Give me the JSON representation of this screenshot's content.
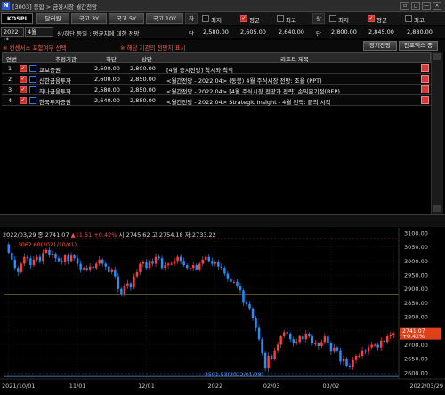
{
  "window": {
    "logo": "N",
    "title": "[3003] 종합 > 금융시장 월간전망",
    "buttons": [
      "▫",
      "◻",
      "—",
      "×"
    ]
  },
  "toolbar": {
    "index": "KOSPI",
    "nav": [
      "달러원",
      "국고 3Y",
      "국고 5Y",
      "국고 10Y"
    ],
    "low_label": "하",
    "high_label": "상",
    "col_titles": [
      "단"
    ],
    "chk_labels": [
      "최저",
      "평균",
      "최고"
    ]
  },
  "row2": {
    "year": "2022년",
    "month": "4월",
    "caption": "상/하단 등일 : 평균치에 대한 전망",
    "low_values": [
      "2,580.00",
      "2,605.00",
      "2,640.00"
    ],
    "high_values": [
      "2,800.00",
      "2,845.00",
      "2,880.00"
    ],
    "side_low": "단",
    "side_high": "단"
  },
  "row3": {
    "warn1": "※ 컨센서스 포함여부 선택",
    "warn2": "※ 해당 기관의 전망치 표시",
    "btn_long": "장기전망",
    "btn_index": "인포맥스 종"
  },
  "table": {
    "headers": [
      "연번",
      "추정기관",
      "하단",
      "상단",
      "리포트 제목"
    ],
    "rows": [
      {
        "no": "1",
        "org": "교보증권",
        "low": "2,600.00",
        "high": "2,800.00",
        "title": "[4월 증시전망] 착시와 착각"
      },
      {
        "no": "2",
        "org": "신한금융투자",
        "low": "2,600.00",
        "high": "2,850.00",
        "title": "<월간전망 - 2022.04> (동봉) 4월 주식시장 전망: 조율 (PPT)"
      },
      {
        "no": "3",
        "org": "하나금융투자",
        "low": "2,580.00",
        "high": "2,850.00",
        "title": "<월간전망 - 2022.04> [4월 주식시장 전망과 전략] 손익분기점(BEP)"
      },
      {
        "no": "4",
        "org": "한국투자증권",
        "low": "2,640.00",
        "high": "2,880.00",
        "title": "<월간전망 - 2022.04> Strategic Insight - 4월 전략: 끝의 시작"
      }
    ]
  },
  "chart": {
    "ohlc_label": "2022/03/29 종:2741.07",
    "ohlc_change": "▲11.51 +0.42%",
    "ohlc_rest": "시:2745.62 고:2754.18 저:2733.22",
    "high_marker": "3062.60(2021/10/01)",
    "low_marker": "2591.53(2022/01/28)",
    "last_price": "2741.07",
    "last_pct": "+0.42%",
    "y_ticks": [
      "3100.00",
      "3050.00",
      "3000.00",
      "2950.00",
      "2900.00",
      "2850.00",
      "2800.00",
      "2750.00",
      "2700.00",
      "2650.00",
      "2600.00"
    ],
    "x_ticks": [
      "2021/10/01",
      "11/01",
      "12/01",
      "2022",
      "02/03",
      "03/02",
      "2022/03/29"
    ],
    "colors": {
      "up": "#ff3b3b",
      "down": "#1e90ff",
      "band_high": "#e6d36a",
      "band_low": "#5a9bd5"
    }
  },
  "chart_data": {
    "type": "candlestick",
    "x_start": "2021/10/01",
    "x_end": "2022/03/29",
    "ylim": [
      2590,
      3100
    ],
    "band_lines": [
      2880,
      2580
    ],
    "closes": [
      3030,
      3005,
      2975,
      2960,
      2990,
      3015,
      3010,
      2985,
      3005,
      3015,
      3000,
      3030,
      3040,
      3020,
      3025,
      3010,
      3000,
      2995,
      3020,
      3000,
      3020,
      3010,
      2990,
      2970,
      2975,
      2970,
      2980,
      2975,
      2990,
      3005,
      2990,
      2980,
      2960,
      2970,
      2945,
      2900,
      2880,
      2910,
      2920,
      2905,
      2945,
      2960,
      2990,
      2995,
      2975,
      3000,
      2990,
      3015,
      3010,
      2975,
      2985,
      2990,
      2990,
      3000,
      3015,
      3000,
      2985,
      2975,
      2975,
      2985,
      2970,
      2990,
      3005,
      3015,
      3000,
      2990,
      2995,
      2980,
      2975,
      2955,
      2935,
      2925,
      2925,
      2910,
      2895,
      2850,
      2845,
      2830,
      2795,
      2760,
      2720,
      2670,
      2615,
      2660,
      2650,
      2680,
      2700,
      2730,
      2745,
      2740,
      2720,
      2705,
      2710,
      2730,
      2720,
      2740,
      2730,
      2705,
      2705,
      2695,
      2710,
      2730,
      2705,
      2675,
      2690,
      2680,
      2640,
      2650,
      2625,
      2620,
      2645,
      2660,
      2660,
      2680,
      2675,
      2690,
      2700,
      2700,
      2690,
      2715,
      2710,
      2730,
      2735,
      2741
    ]
  }
}
